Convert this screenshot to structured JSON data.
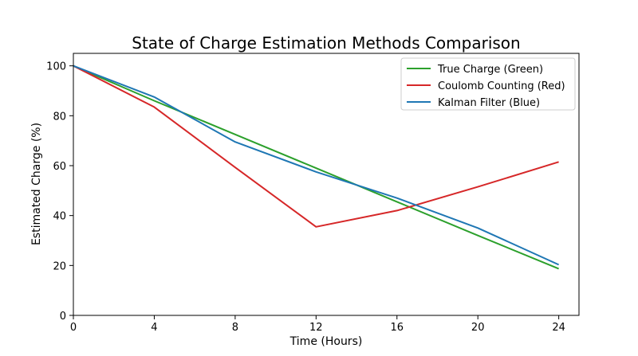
{
  "chart_data": {
    "type": "line",
    "title": "State of Charge Estimation Methods Comparison",
    "xlabel": "Time (Hours)",
    "ylabel": "Estimated Charge (%)",
    "xlim": [
      0,
      25
    ],
    "ylim": [
      0,
      105
    ],
    "xticks": [
      0,
      4,
      8,
      12,
      16,
      20,
      24
    ],
    "yticks": [
      0,
      20,
      40,
      60,
      80,
      100
    ],
    "grid": false,
    "legend_position": "top-right",
    "x": [
      0,
      4,
      8,
      12,
      16,
      20,
      24
    ],
    "series": [
      {
        "name": "True Charge (Green)",
        "color": "#2ca02c",
        "values": [
          100,
          86,
          72.5,
          59,
          45.5,
          32,
          18.7
        ]
      },
      {
        "name": "Coulomb Counting (Red)",
        "color": "#d62728",
        "values": [
          100,
          83.5,
          59.3,
          35.5,
          42,
          51.5,
          61.5
        ]
      },
      {
        "name": "Kalman Filter (Blue)",
        "color": "#1f77b4",
        "values": [
          100,
          87.5,
          69.5,
          57.5,
          47,
          35,
          20.3
        ]
      }
    ]
  }
}
